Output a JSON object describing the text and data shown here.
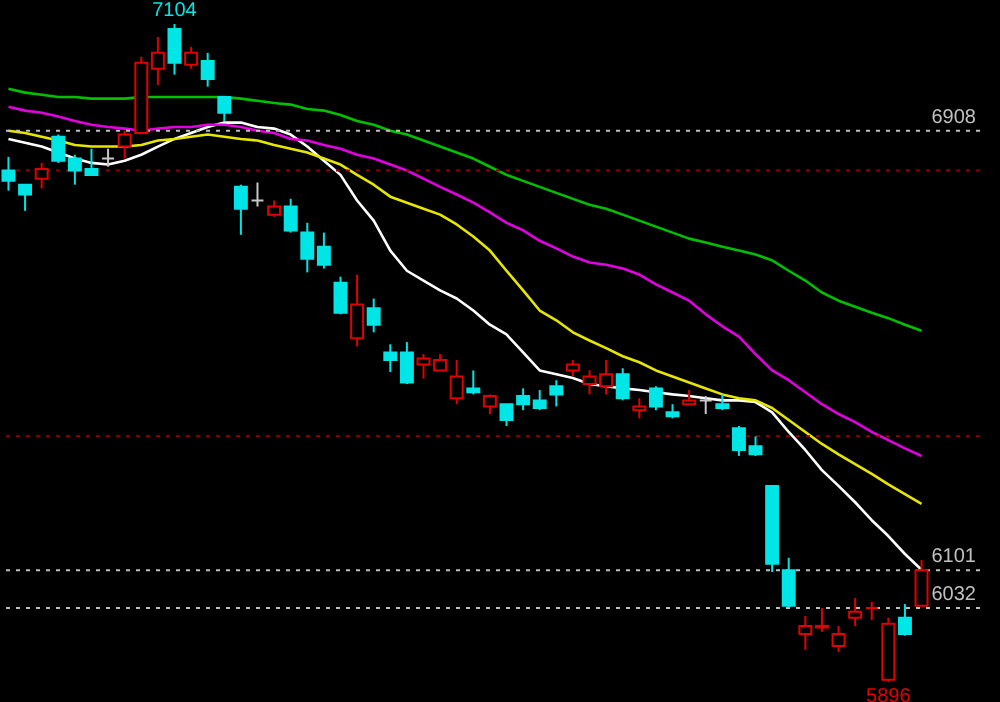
{
  "chart_data": {
    "type": "candlestick",
    "categories": [
      null,
      null,
      null,
      null,
      null,
      null,
      null,
      null,
      null,
      null,
      null,
      null,
      null,
      null,
      null,
      null,
      null,
      null,
      null,
      null,
      null,
      null,
      null,
      null,
      null,
      null,
      null,
      null,
      null,
      null,
      null,
      null,
      null,
      null,
      null,
      null,
      null,
      null,
      null,
      null,
      null,
      null,
      null,
      null,
      null,
      null,
      null,
      null,
      null,
      null,
      null,
      null,
      null,
      null,
      null,
      null
    ],
    "ohlc": [
      [
        6835,
        6860,
        6798,
        6816
      ],
      [
        6809,
        6809,
        6761,
        6791
      ],
      [
        6820,
        6849,
        6802,
        6838
      ],
      [
        6897,
        6901,
        6849,
        6853
      ],
      [
        6857,
        6864,
        6809,
        6835
      ],
      [
        6838,
        6875,
        6827,
        6827
      ],
      [
        6857,
        6875,
        6842,
        6857
      ],
      [
        6879,
        6908,
        6857,
        6901
      ],
      [
        6904,
        7044,
        6901,
        7033
      ],
      [
        7022,
        7080,
        6992,
        7051
      ],
      [
        7095,
        7104,
        7011,
        7033
      ],
      [
        7029,
        7062,
        7022,
        7051
      ],
      [
        7036,
        7051,
        6989,
        7003
      ],
      [
        6970,
        6970,
        6926,
        6941
      ],
      [
        6805,
        6809,
        6717,
        6765
      ],
      [
        6780,
        6813,
        6769,
        6780
      ],
      [
        6754,
        6780,
        6750,
        6769
      ],
      [
        6769,
        6783,
        6721,
        6725
      ],
      [
        6721,
        6739,
        6648,
        6673
      ],
      [
        6695,
        6721,
        6655,
        6662
      ],
      [
        6629,
        6640,
        6571,
        6574
      ],
      [
        6527,
        6644,
        6512,
        6589
      ],
      [
        6582,
        6600,
        6538,
        6552
      ],
      [
        6501,
        6516,
        6465,
        6487
      ],
      [
        6501,
        6520,
        6443,
        6446
      ],
      [
        6479,
        6498,
        6453,
        6490
      ],
      [
        6468,
        6498,
        6468,
        6487
      ],
      [
        6417,
        6487,
        6406,
        6457
      ],
      [
        6435,
        6468,
        6424,
        6428
      ],
      [
        6402,
        6424,
        6388,
        6421
      ],
      [
        6406,
        6406,
        6366,
        6377
      ],
      [
        6421,
        6435,
        6395,
        6406
      ],
      [
        6413,
        6432,
        6395,
        6399
      ],
      [
        6439,
        6450,
        6402,
        6424
      ],
      [
        6468,
        6487,
        6457,
        6479
      ],
      [
        6443,
        6468,
        6424,
        6457
      ],
      [
        6439,
        6487,
        6424,
        6461
      ],
      [
        6461,
        6472,
        6413,
        6417
      ],
      [
        6395,
        6417,
        6380,
        6402
      ],
      [
        6435,
        6439,
        6395,
        6402
      ],
      [
        6391,
        6406,
        6380,
        6384
      ],
      [
        6406,
        6432,
        6406,
        6413
      ],
      [
        6413,
        6421,
        6388,
        6413
      ],
      [
        6406,
        6424,
        6395,
        6399
      ],
      [
        6362,
        6366,
        6311,
        6322
      ],
      [
        6329,
        6347,
        6311,
        6314
      ],
      [
        6256,
        6256,
        6098,
        6113
      ],
      [
        6101,
        6124,
        6032,
        6036
      ],
      [
        5984,
        6017,
        5955,
        5999
      ],
      [
        5996,
        6032,
        5988,
        5999
      ],
      [
        5962,
        5999,
        5951,
        5984
      ],
      [
        6014,
        6050,
        5999,
        6025
      ],
      [
        6032,
        6043,
        6010,
        6032
      ],
      [
        5900,
        6014,
        5896,
        6003
      ],
      [
        6014,
        6039,
        5981,
        5984
      ],
      [
        6036,
        6120,
        6036,
        6101
      ]
    ],
    "colors": [
      "#00e5e5",
      "#00e5e5",
      "#e00000",
      "#00e5e5",
      "#00e5e5",
      "#00e5e5",
      "#c8c8c8",
      "#e00000",
      "#e00000",
      "#e00000",
      "#00e5e5",
      "#e00000",
      "#00e5e5",
      "#00e5e5",
      "#00e5e5",
      "#c8c8c8",
      "#e00000",
      "#00e5e5",
      "#00e5e5",
      "#00e5e5",
      "#00e5e5",
      "#e00000",
      "#00e5e5",
      "#00e5e5",
      "#00e5e5",
      "#e00000",
      "#e00000",
      "#e00000",
      "#00e5e5",
      "#e00000",
      "#00e5e5",
      "#00e5e5",
      "#00e5e5",
      "#00e5e5",
      "#e00000",
      "#e00000",
      "#e00000",
      "#00e5e5",
      "#e00000",
      "#00e5e5",
      "#00e5e5",
      "#e00000",
      "#c8c8c8",
      "#00e5e5",
      "#00e5e5",
      "#00e5e5",
      "#00e5e5",
      "#00e5e5",
      "#e00000",
      "#e00000",
      "#e00000",
      "#e00000",
      "#e00000",
      "#e00000",
      "#00e5e5",
      "#e00000"
    ],
    "series": [
      {
        "type": "line",
        "color": "#ffffff",
        "values": [
          6893,
          6886,
          6879,
          6868,
          6857,
          6849,
          6846,
          6853,
          6864,
          6879,
          6893,
          6904,
          6915,
          6923,
          6923,
          6915,
          6912,
          6901,
          6879,
          6853,
          6827,
          6780,
          6743,
          6688,
          6651,
          6633,
          6615,
          6600,
          6578,
          6552,
          6534,
          6501,
          6468,
          6461,
          6454,
          6443,
          6439,
          6435,
          6432,
          6428,
          6424,
          6421,
          6417,
          6413,
          6413,
          6410,
          6391,
          6355,
          6322,
          6285,
          6256,
          6226,
          6193,
          6164,
          6131,
          6102
        ]
      },
      {
        "type": "line",
        "color": "#e6e600",
        "values": [
          6908,
          6904,
          6897,
          6890,
          6882,
          6879,
          6879,
          6879,
          6882,
          6890,
          6893,
          6897,
          6901,
          6897,
          6893,
          6890,
          6882,
          6875,
          6868,
          6857,
          6846,
          6827,
          6809,
          6787,
          6776,
          6765,
          6754,
          6736,
          6714,
          6688,
          6651,
          6615,
          6578,
          6560,
          6538,
          6523,
          6509,
          6494,
          6483,
          6468,
          6457,
          6446,
          6435,
          6424,
          6417,
          6413,
          6399,
          6377,
          6355,
          6333,
          6314,
          6296,
          6278,
          6259,
          6241,
          6223
        ]
      },
      {
        "type": "line",
        "color": "#e000e0",
        "values": [
          6952,
          6945,
          6941,
          6934,
          6926,
          6919,
          6915,
          6912,
          6908,
          6912,
          6915,
          6915,
          6919,
          6919,
          6915,
          6908,
          6904,
          6893,
          6890,
          6882,
          6875,
          6864,
          6857,
          6846,
          6835,
          6820,
          6805,
          6791,
          6776,
          6758,
          6739,
          6725,
          6706,
          6692,
          6677,
          6666,
          6662,
          6655,
          6644,
          6626,
          6611,
          6596,
          6571,
          6549,
          6530,
          6498,
          6468,
          6450,
          6428,
          6406,
          6388,
          6373,
          6355,
          6340,
          6325,
          6311
        ]
      },
      {
        "type": "line",
        "color": "#00c000",
        "values": [
          6985,
          6978,
          6974,
          6970,
          6970,
          6967,
          6967,
          6967,
          6970,
          6970,
          6970,
          6970,
          6970,
          6970,
          6967,
          6963,
          6959,
          6956,
          6948,
          6945,
          6937,
          6926,
          6919,
          6908,
          6901,
          6890,
          6879,
          6868,
          6857,
          6842,
          6827,
          6816,
          6805,
          6794,
          6783,
          6772,
          6765,
          6754,
          6743,
          6732,
          6721,
          6710,
          6703,
          6695,
          6688,
          6681,
          6670,
          6651,
          6633,
          6611,
          6596,
          6585,
          6574,
          6564,
          6552,
          6541
        ]
      }
    ],
    "ref_lines": [
      {
        "axis": "y",
        "value": 6908,
        "label": "6908",
        "color": "#c0c0c0",
        "line_style": "dotted"
      },
      {
        "axis": "y",
        "value": 6835,
        "label": null,
        "color": "#900000",
        "line_style": "dotted"
      },
      {
        "axis": "y",
        "value": 6347,
        "label": null,
        "color": "#900000",
        "line_style": "dotted"
      },
      {
        "axis": "y",
        "value": 6101,
        "label": "6101",
        "color": "#c0c0c0",
        "line_style": "dotted"
      },
      {
        "axis": "y",
        "value": 6032,
        "label": "6032",
        "color": "#c0c0c0",
        "line_style": "dotted"
      }
    ],
    "annotations": [
      {
        "text": "7104",
        "y": 7104
      },
      {
        "text": "5896",
        "y": 5896
      }
    ]
  }
}
